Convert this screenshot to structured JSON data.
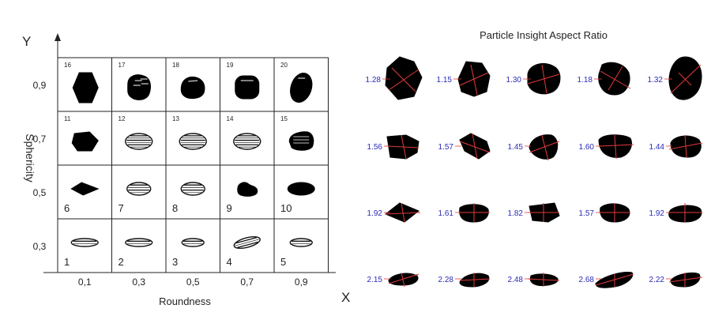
{
  "left_chart": {
    "y_axis_letter": "Y",
    "x_axis_letter": "X",
    "y_axis_title": "Sphericity",
    "x_axis_title": "Roundness",
    "row_labels": [
      "0,9",
      "0,7",
      "0,5",
      "0,3"
    ],
    "col_labels": [
      "0,1",
      "0,3",
      "0,5",
      "0,7",
      "0,9"
    ],
    "cells": [
      {
        "number": "16",
        "shape": "hexagon"
      },
      {
        "number": "17",
        "shape": "lumpy"
      },
      {
        "number": "18",
        "shape": "rounded"
      },
      {
        "number": "19",
        "shape": "rounded-square"
      },
      {
        "number": "20",
        "shape": "oval-tilted"
      },
      {
        "number": "11",
        "shape": "hexagon-flat"
      },
      {
        "number": "12",
        "shape": "lens"
      },
      {
        "number": "13",
        "shape": "lens"
      },
      {
        "number": "14",
        "shape": "lens"
      },
      {
        "number": "15",
        "shape": "lens-rounded"
      },
      {
        "number": "6",
        "shape": "diamond-flat"
      },
      {
        "number": "7",
        "shape": "rect-flat"
      },
      {
        "number": "8",
        "shape": "rect-flat"
      },
      {
        "number": "9",
        "shape": "bean"
      },
      {
        "number": "10",
        "shape": "ellipse"
      },
      {
        "number": "1",
        "shape": "thin-lens"
      },
      {
        "number": "2",
        "shape": "thin-lens"
      },
      {
        "number": "3",
        "shape": "thin-rect"
      },
      {
        "number": "4",
        "shape": "thin-tilted"
      },
      {
        "number": "5",
        "shape": "thin-rect"
      }
    ]
  },
  "right_panel": {
    "title": "Particle Insight Aspect Ratio",
    "rows": [
      [
        "1.28",
        "1.15",
        "1.30",
        "1.18",
        "1.32"
      ],
      [
        "1.56",
        "1.57",
        "1.45",
        "1.60",
        "1.44"
      ],
      [
        "1.92",
        "1.61",
        "1.82",
        "1.57",
        "1.92"
      ],
      [
        "2.15",
        "2.28",
        "2.48",
        "2.68",
        "2.22"
      ]
    ]
  },
  "colors": {
    "particle": "#000000",
    "axis_line": "#e23a3a",
    "ratio_label": "#2b2bb8",
    "grid": "#222222"
  }
}
